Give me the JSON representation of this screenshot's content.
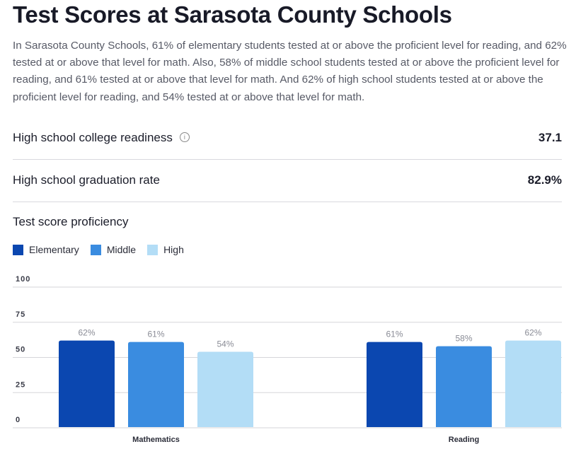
{
  "title": "Test Scores at Sarasota County Schools",
  "intro": "In Sarasota County Schools, 61% of elementary students tested at or above the proficient level for reading, and 62% tested at or above that level for math. Also, 58% of middle school students tested at or above the proficient level for reading, and 61% tested at or above that level for math. And 62% of high school students tested at or above the proficient level for reading, and 54% tested at or above that level for math.",
  "metrics": [
    {
      "label": "High school college readiness",
      "value": "37.1",
      "icon": "info-icon",
      "icon_glyph": "i"
    },
    {
      "label": "High school graduation rate",
      "value": "82.9%"
    }
  ],
  "section_title": "Test score proficiency",
  "chart_data": {
    "type": "bar",
    "title": "Test score proficiency",
    "categories": [
      "Mathematics",
      "Reading"
    ],
    "series": [
      {
        "name": "Elementary",
        "color": "#0b47b0",
        "values": [
          62,
          61
        ],
        "labels": [
          "62%",
          "61%"
        ]
      },
      {
        "name": "Middle",
        "color": "#3a8ce0",
        "values": [
          61,
          58
        ],
        "labels": [
          "61%",
          "58%"
        ]
      },
      {
        "name": "High",
        "color": "#b3ddf6",
        "values": [
          54,
          62
        ],
        "labels": [
          "54%",
          "62%"
        ]
      }
    ],
    "ylim": [
      0,
      100
    ],
    "yticks": [
      "0",
      "25",
      "50",
      "75",
      "100"
    ],
    "ytick_values": [
      0,
      25,
      50,
      75,
      100
    ],
    "grid": true,
    "legend": "top-left",
    "xlabel": "",
    "ylabel": ""
  }
}
